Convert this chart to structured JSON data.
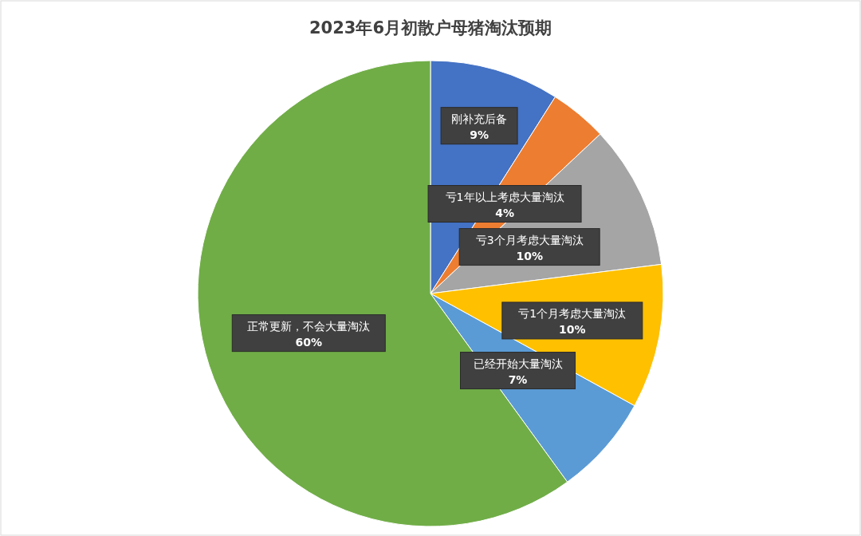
{
  "chart_data": {
    "type": "pie",
    "title": "2023年6月初散户母猪淘汰预期",
    "categories": [
      "刚补充后备",
      "亏1年以上考虑大量淘汰",
      "亏3个月考虑大量淘汰",
      "亏1个月考虑大量淘汰",
      "已经开始大量淘汰",
      "正常更新，不会大量淘汰"
    ],
    "values": [
      9,
      4,
      10,
      10,
      7,
      60
    ],
    "colors": [
      "#4472c4",
      "#ed7d31",
      "#a5a5a5",
      "#ffc000",
      "#5b9bd5",
      "#70ad47"
    ],
    "value_labels": [
      "9%",
      "4%",
      "10%",
      "10%",
      "7%",
      "60%"
    ]
  }
}
